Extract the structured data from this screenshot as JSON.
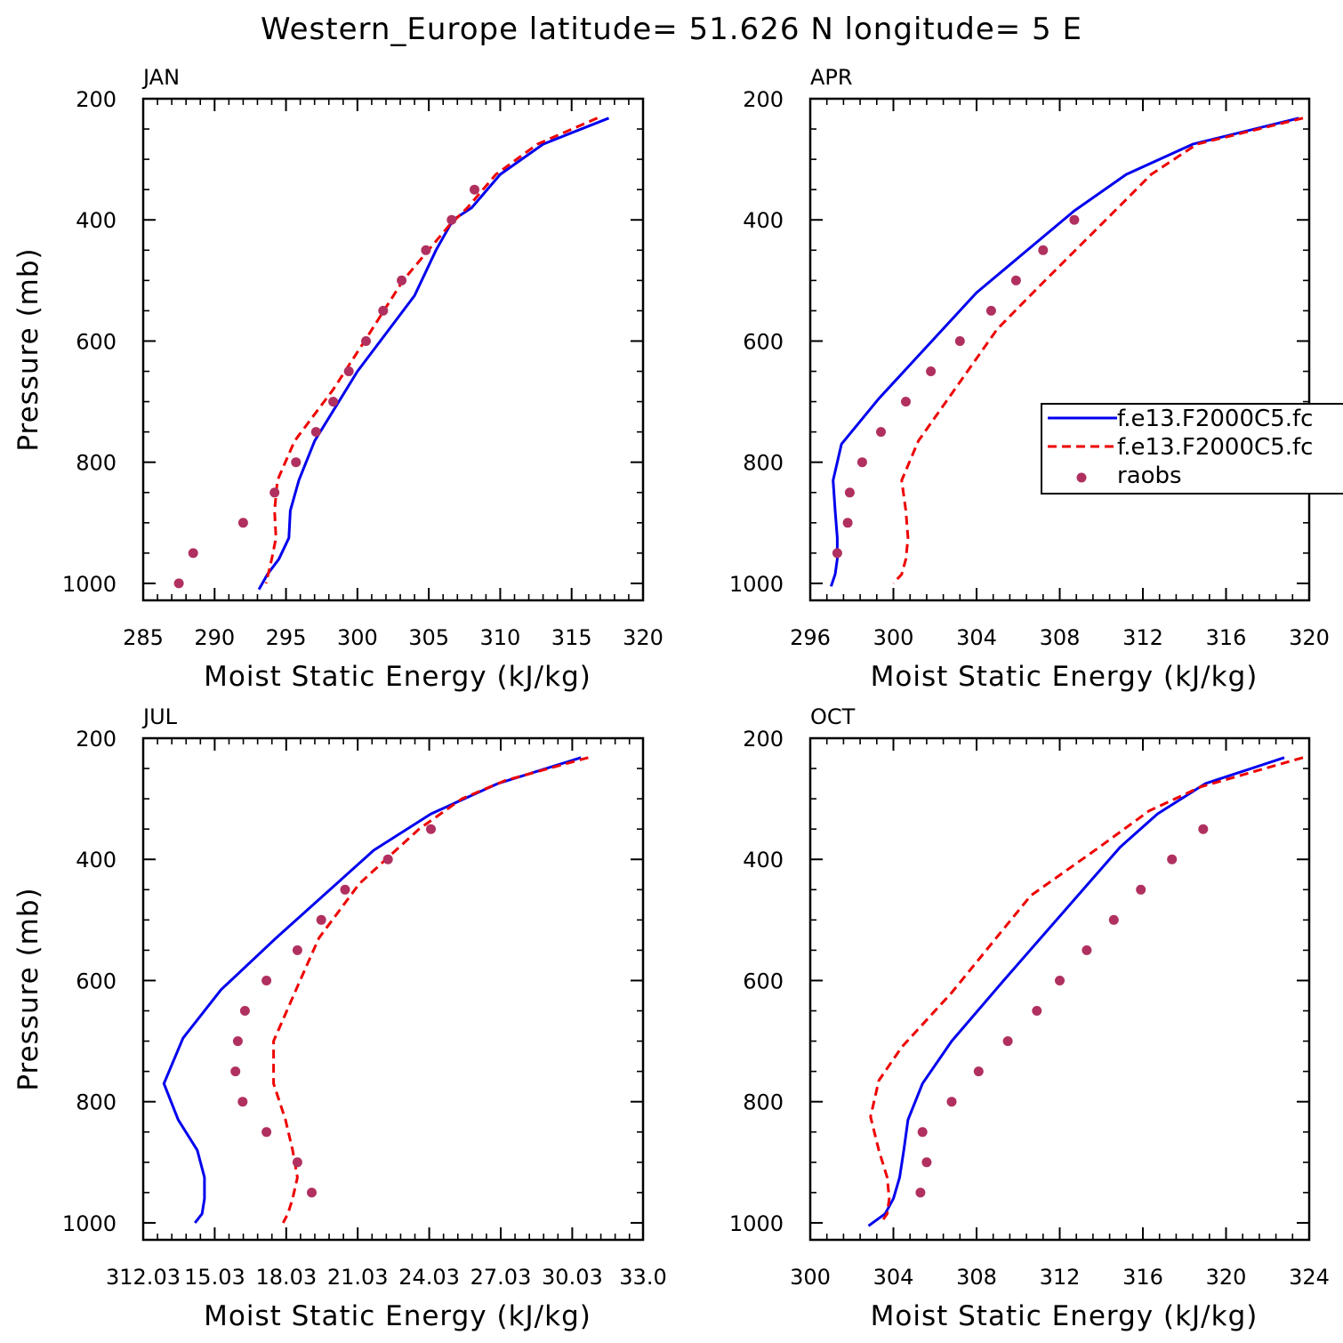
{
  "title": "Western_Europe  latitude= 51.626 N longitude= 5 E",
  "colors": {
    "model1": "#0000ee",
    "model2": "#ee0000",
    "raobs": "#b03060",
    "axes": "#000000"
  },
  "legend": {
    "items": [
      {
        "label": "f.e13.F2000C5.fc",
        "style": "solid",
        "color": "#0000ee"
      },
      {
        "label": "f.e13.F2000C5.fc",
        "style": "dashed",
        "color": "#ee0000"
      },
      {
        "label": "raobs",
        "style": "marker",
        "color": "#b03060"
      }
    ]
  },
  "chart_data": [
    {
      "panel": "JAN",
      "type": "line",
      "xlabel": "Moist Static Energy (kJ/kg)",
      "ylabel": "Pressure (mb)",
      "xlim": [
        285,
        320
      ],
      "ylim": [
        1000,
        200
      ],
      "xticks": [
        "285",
        "290",
        "295",
        "300",
        "305",
        "310",
        "315",
        "320"
      ],
      "xtick_values": [
        285,
        290,
        295,
        300,
        305,
        310,
        315,
        320
      ],
      "yticks": [
        "200",
        "400",
        "600",
        "800",
        "1000"
      ],
      "ytick_values": [
        200,
        400,
        600,
        800,
        1000
      ],
      "series": [
        {
          "name": "f.e13.F2000C5.fc",
          "style": "solid",
          "points": [
            [
              317.6,
              232
            ],
            [
              313,
              275
            ],
            [
              310,
              325
            ],
            [
              308,
              380
            ],
            [
              306.7,
              400
            ],
            [
              305.5,
              450
            ],
            [
              304,
              525
            ],
            [
              300,
              650
            ],
            [
              297,
              765
            ],
            [
              295.9,
              830
            ],
            [
              295.3,
              880
            ],
            [
              295.2,
              925
            ],
            [
              294.5,
              960
            ],
            [
              293.7,
              985
            ],
            [
              293.1,
              1010
            ]
          ]
        },
        {
          "name": "f.e13.F2000C5.fc",
          "style": "dashed",
          "points": [
            [
              316.8,
              232
            ],
            [
              312.6,
              275
            ],
            [
              309.7,
              325
            ],
            [
              307.7,
              380
            ],
            [
              306.4,
              410
            ],
            [
              303.2,
              500
            ],
            [
              300.5,
              600
            ],
            [
              298.3,
              680
            ],
            [
              295.6,
              765
            ],
            [
              294.4,
              830
            ],
            [
              294.2,
              880
            ],
            [
              294.3,
              925
            ],
            [
              294,
              960
            ],
            [
              293.6,
              1000
            ]
          ]
        }
      ],
      "raobs": [
        [
          308.2,
          350
        ],
        [
          306.6,
          400
        ],
        [
          304.8,
          450
        ],
        [
          303.1,
          500
        ],
        [
          301.8,
          550
        ],
        [
          300.6,
          600
        ],
        [
          299.4,
          650
        ],
        [
          298.3,
          700
        ],
        [
          297.1,
          750
        ],
        [
          295.7,
          800
        ],
        [
          294.2,
          850
        ],
        [
          292,
          900
        ],
        [
          288.5,
          950
        ],
        [
          287.5,
          1000
        ]
      ]
    },
    {
      "panel": "APR",
      "type": "line",
      "xlabel": "Moist Static Energy (kJ/kg)",
      "ylabel": "",
      "xlim": [
        296,
        320
      ],
      "ylim": [
        1000,
        200
      ],
      "xticks": [
        "296",
        "300",
        "304",
        "308",
        "312",
        "316",
        "320"
      ],
      "xtick_values": [
        296,
        300,
        304,
        308,
        312,
        316,
        320
      ],
      "yticks": [
        "200",
        "400",
        "600",
        "800",
        "1000"
      ],
      "ytick_values": [
        200,
        400,
        600,
        800,
        1000
      ],
      "series": [
        {
          "name": "f.e13.F2000C5.fc",
          "style": "solid",
          "points": [
            [
              319.5,
              232
            ],
            [
              314.4,
              275
            ],
            [
              311.2,
              325
            ],
            [
              308.7,
              385
            ],
            [
              304,
              520
            ],
            [
              299.3,
              695
            ],
            [
              297.5,
              770
            ],
            [
              297.1,
              830
            ],
            [
              297.2,
              880
            ],
            [
              297.3,
              925
            ],
            [
              297.3,
              960
            ],
            [
              297.2,
              985
            ],
            [
              297,
              1005
            ]
          ]
        },
        {
          "name": "f.e13.F2000C5.fc",
          "style": "dashed",
          "points": [
            [
              319.7,
              232
            ],
            [
              314.6,
              275
            ],
            [
              312.4,
              325
            ],
            [
              310.8,
              380
            ],
            [
              307.3,
              500
            ],
            [
              305,
              580
            ],
            [
              301.2,
              765
            ],
            [
              300.4,
              830
            ],
            [
              300.6,
              880
            ],
            [
              300.7,
              925
            ],
            [
              300.6,
              960
            ],
            [
              300.4,
              985
            ],
            [
              300,
              1000
            ]
          ]
        }
      ],
      "raobs": [
        [
          308.7,
          400
        ],
        [
          307.2,
          450
        ],
        [
          305.9,
          500
        ],
        [
          304.7,
          550
        ],
        [
          303.2,
          600
        ],
        [
          301.8,
          650
        ],
        [
          300.6,
          700
        ],
        [
          299.4,
          750
        ],
        [
          298.5,
          800
        ],
        [
          297.9,
          850
        ],
        [
          297.8,
          900
        ],
        [
          297.3,
          950
        ]
      ]
    },
    {
      "panel": "JUL",
      "type": "line",
      "xlabel": "Moist Static Energy (kJ/kg)",
      "ylabel": "Pressure (mb)",
      "xlim": [
        312.03,
        333.0
      ],
      "ylim": [
        1000,
        200
      ],
      "xticks": [
        "312.03",
        "15.03",
        "18.03",
        "21.03",
        "24.03",
        "27.03",
        "30.03",
        "33.0"
      ],
      "xtick_values": [
        312.03,
        315.03,
        318.03,
        321.03,
        324.03,
        327.03,
        330.03,
        333.0
      ],
      "yticks": [
        "200",
        "400",
        "600",
        "800",
        "1000"
      ],
      "ytick_values": [
        200,
        400,
        600,
        800,
        1000
      ],
      "series": [
        {
          "name": "f.e13.F2000C5.fc",
          "style": "solid",
          "points": [
            [
              330.4,
              232
            ],
            [
              326.9,
              275
            ],
            [
              324.1,
              325
            ],
            [
              321.7,
              385
            ],
            [
              317.6,
              530
            ],
            [
              315.3,
              615
            ],
            [
              313.7,
              695
            ],
            [
              312.9,
              770
            ],
            [
              313.5,
              830
            ],
            [
              314.3,
              880
            ],
            [
              314.6,
              925
            ],
            [
              314.6,
              960
            ],
            [
              314.5,
              985
            ],
            [
              314.2,
              1000
            ]
          ]
        },
        {
          "name": "f.e13.F2000C5.fc",
          "style": "dashed",
          "points": [
            [
              330.7,
              232
            ],
            [
              327.2,
              270
            ],
            [
              325.4,
              300
            ],
            [
              323.6,
              350
            ],
            [
              321.1,
              440
            ],
            [
              319.4,
              530
            ],
            [
              318.5,
              610
            ],
            [
              317.5,
              700
            ],
            [
              317.5,
              770
            ],
            [
              318,
              830
            ],
            [
              318.3,
              880
            ],
            [
              318.5,
              925
            ],
            [
              318.3,
              960
            ],
            [
              318.1,
              985
            ],
            [
              317.9,
              1000
            ]
          ]
        }
      ],
      "raobs": [
        [
          324.1,
          350
        ],
        [
          322.3,
          400
        ],
        [
          320.5,
          450
        ],
        [
          319.5,
          500
        ],
        [
          318.5,
          550
        ],
        [
          317.2,
          600
        ],
        [
          316.3,
          650
        ],
        [
          316,
          700
        ],
        [
          315.9,
          750
        ],
        [
          316.2,
          800
        ],
        [
          317.2,
          850
        ],
        [
          318.5,
          900
        ],
        [
          319.1,
          950
        ]
      ]
    },
    {
      "panel": "OCT",
      "type": "line",
      "xlabel": "Moist Static Energy (kJ/kg)",
      "ylabel": "",
      "xlim": [
        300,
        324
      ],
      "ylim": [
        1000,
        200
      ],
      "xticks": [
        "300",
        "304",
        "308",
        "312",
        "316",
        "320",
        "324"
      ],
      "xtick_values": [
        300,
        304,
        308,
        312,
        316,
        320,
        324
      ],
      "yticks": [
        "200",
        "400",
        "600",
        "800",
        "1000"
      ],
      "ytick_values": [
        200,
        400,
        600,
        800,
        1000
      ],
      "series": [
        {
          "name": "f.e13.F2000C5.fc",
          "style": "solid",
          "points": [
            [
              322.8,
              232
            ],
            [
              319,
              275
            ],
            [
              316.7,
              325
            ],
            [
              314.9,
              380
            ],
            [
              309.3,
              600
            ],
            [
              306.8,
              700
            ],
            [
              305.4,
              770
            ],
            [
              304.7,
              830
            ],
            [
              304.5,
              880
            ],
            [
              304.3,
              925
            ],
            [
              304,
              960
            ],
            [
              303.6,
              985
            ],
            [
              302.8,
              1005
            ]
          ]
        },
        {
          "name": "f.e13.F2000C5.fc",
          "style": "dashed",
          "points": [
            [
              323.7,
              232
            ],
            [
              318.8,
              280
            ],
            [
              316.3,
              320
            ],
            [
              313.9,
              380
            ],
            [
              310.6,
              460
            ],
            [
              306.8,
              620
            ],
            [
              304.4,
              710
            ],
            [
              303.3,
              765
            ],
            [
              302.9,
              825
            ],
            [
              303.3,
              880
            ],
            [
              303.7,
              925
            ],
            [
              303.8,
              960
            ],
            [
              303.7,
              985
            ],
            [
              303.4,
              1000
            ]
          ]
        }
      ],
      "raobs": [
        [
          318.9,
          350
        ],
        [
          317.4,
          400
        ],
        [
          315.9,
          450
        ],
        [
          314.6,
          500
        ],
        [
          313.3,
          550
        ],
        [
          312,
          600
        ],
        [
          310.9,
          650
        ],
        [
          309.5,
          700
        ],
        [
          308.1,
          750
        ],
        [
          306.8,
          800
        ],
        [
          305.4,
          850
        ],
        [
          305.6,
          900
        ],
        [
          305.3,
          950
        ]
      ]
    }
  ]
}
